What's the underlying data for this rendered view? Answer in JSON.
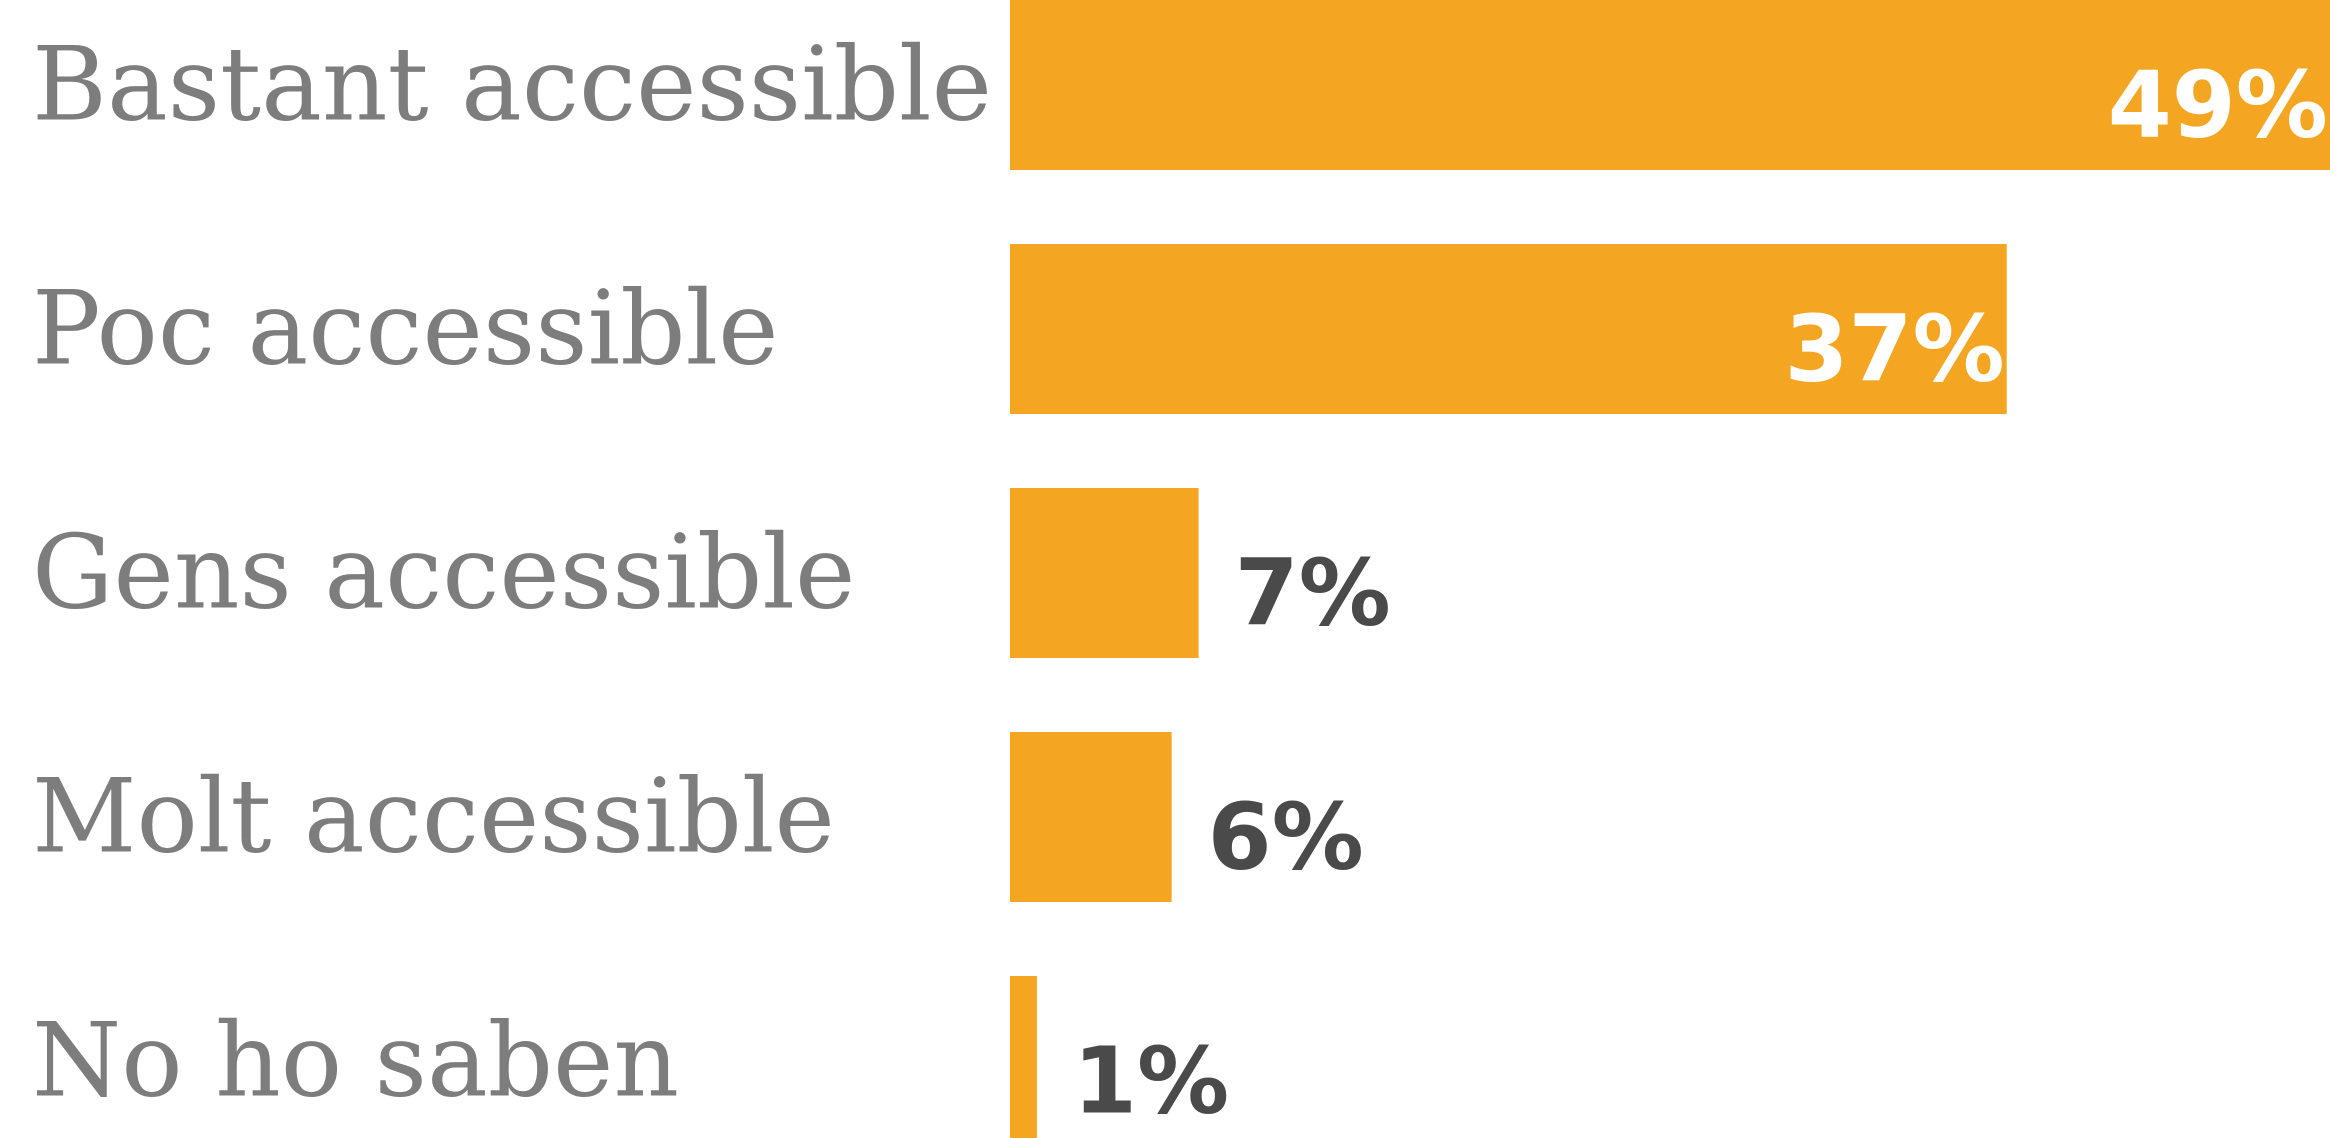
{
  "chart_data": {
    "type": "bar",
    "orientation": "horizontal",
    "categories": [
      "Bastant accessible",
      "Poc accessible",
      "Gens accessible",
      "Molt accessible",
      "No ho saben"
    ],
    "values": [
      49,
      37,
      7,
      6,
      1
    ],
    "value_labels": [
      "49%",
      "37%",
      "7%",
      "6%",
      "1%"
    ],
    "unit": "%",
    "xlim": [
      0,
      49
    ],
    "grid": false,
    "legend": "none",
    "title": "",
    "xlabel": "",
    "ylabel": ""
  },
  "colors": {
    "bar": "#F4A623",
    "label_inside": "#ffffff",
    "label_outside": "#4a4a4a",
    "category_text": "#7d7d7d",
    "background": "#ffffff"
  }
}
